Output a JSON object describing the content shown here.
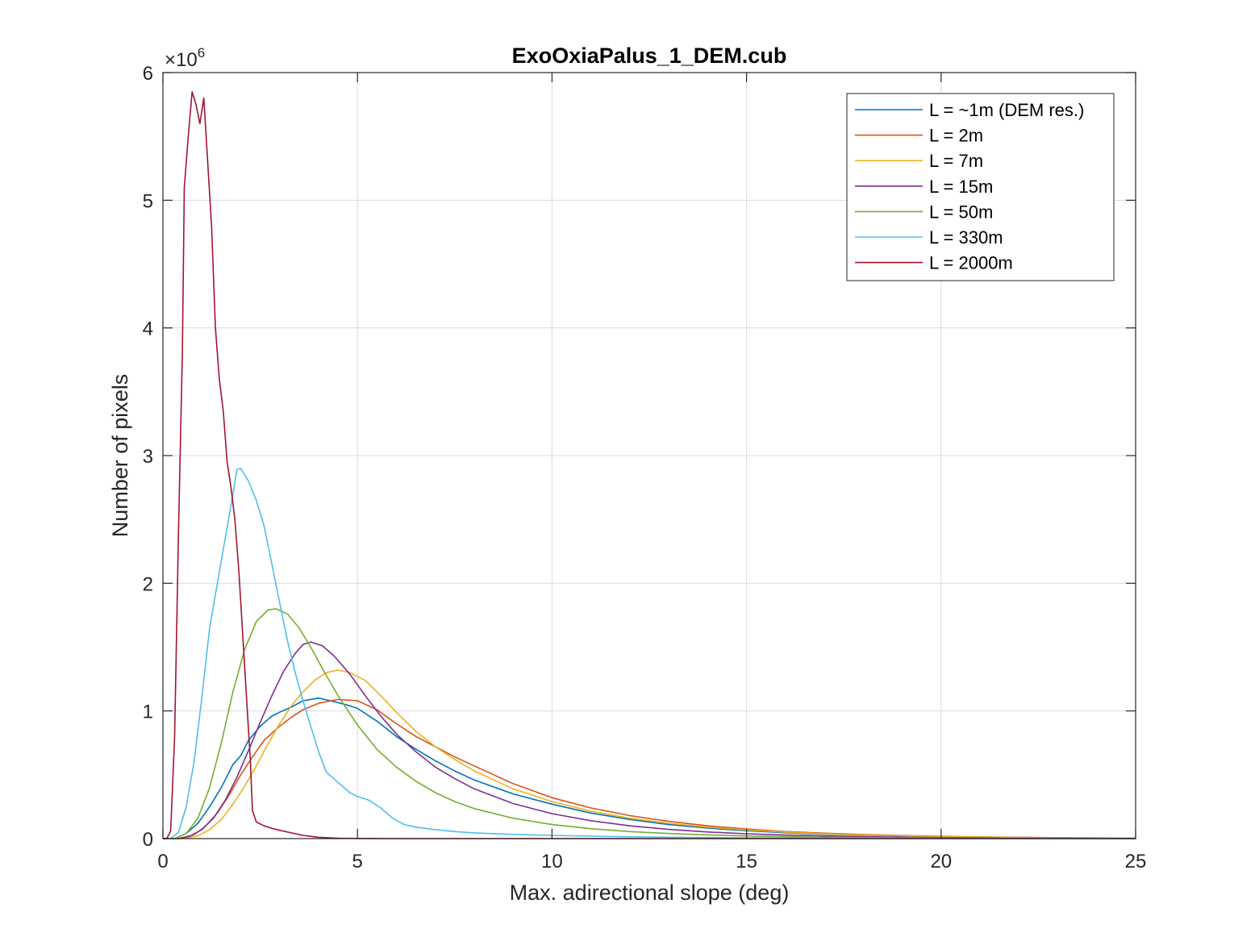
{
  "chart_data": {
    "type": "line",
    "title": "ExoOxiaPalus_1_DEM.cub",
    "xlabel": "Max. adirectional slope (deg)",
    "ylabel": "Number of pixels",
    "xlim": [
      0,
      25
    ],
    "ylim": [
      0,
      6000000
    ],
    "xticks": [
      0,
      5,
      10,
      15,
      20,
      25
    ],
    "xtick_labels": [
      "0",
      "5",
      "10",
      "15",
      "20",
      "25"
    ],
    "yticks": [
      0,
      1000000,
      2000000,
      3000000,
      4000000,
      5000000,
      6000000
    ],
    "ytick_labels": [
      "0",
      "1",
      "2",
      "3",
      "4",
      "5",
      "6"
    ],
    "y_exponent": {
      "base": "×10",
      "power": "6"
    },
    "grid": true,
    "legend_position": "top-right",
    "series": [
      {
        "name": "L = ~1m (DEM res.)",
        "color": "#0072BD",
        "points": [
          [
            0,
            0
          ],
          [
            0.3,
            0
          ],
          [
            0.6,
            40000
          ],
          [
            0.9,
            120000
          ],
          [
            1.2,
            250000
          ],
          [
            1.5,
            400000
          ],
          [
            1.8,
            580000
          ],
          [
            2.0,
            650000
          ],
          [
            2.2,
            770000
          ],
          [
            2.5,
            880000
          ],
          [
            2.8,
            960000
          ],
          [
            3.0,
            990000
          ],
          [
            3.3,
            1030000
          ],
          [
            3.6,
            1080000
          ],
          [
            4.0,
            1100000
          ],
          [
            4.3,
            1080000
          ],
          [
            4.7,
            1050000
          ],
          [
            5.0,
            1020000
          ],
          [
            5.5,
            920000
          ],
          [
            6.0,
            800000
          ],
          [
            6.5,
            700000
          ],
          [
            7.0,
            610000
          ],
          [
            7.5,
            530000
          ],
          [
            8.0,
            460000
          ],
          [
            9.0,
            350000
          ],
          [
            10.0,
            270000
          ],
          [
            11.0,
            200000
          ],
          [
            12.0,
            150000
          ],
          [
            13.0,
            110000
          ],
          [
            14.0,
            82000
          ],
          [
            15.0,
            62000
          ],
          [
            16.0,
            46000
          ],
          [
            17.0,
            35000
          ],
          [
            18.0,
            27000
          ],
          [
            19.0,
            20000
          ],
          [
            20.0,
            15000
          ],
          [
            21.0,
            11000
          ],
          [
            22.0,
            8000
          ],
          [
            23.0,
            6000
          ],
          [
            24.0,
            4000
          ],
          [
            25.0,
            3000
          ]
        ]
      },
      {
        "name": "L = 2m",
        "color": "#D95319",
        "points": [
          [
            0,
            0
          ],
          [
            0.4,
            0
          ],
          [
            0.8,
            30000
          ],
          [
            1.1,
            100000
          ],
          [
            1.4,
            200000
          ],
          [
            1.7,
            340000
          ],
          [
            2.0,
            500000
          ],
          [
            2.3,
            640000
          ],
          [
            2.6,
            770000
          ],
          [
            3.0,
            880000
          ],
          [
            3.3,
            950000
          ],
          [
            3.6,
            1010000
          ],
          [
            4.0,
            1060000
          ],
          [
            4.5,
            1090000
          ],
          [
            5.0,
            1080000
          ],
          [
            5.5,
            1010000
          ],
          [
            6.0,
            900000
          ],
          [
            6.5,
            800000
          ],
          [
            7.0,
            720000
          ],
          [
            7.5,
            640000
          ],
          [
            8.0,
            570000
          ],
          [
            8.5,
            500000
          ],
          [
            9.0,
            430000
          ],
          [
            10.0,
            320000
          ],
          [
            11.0,
            240000
          ],
          [
            12.0,
            180000
          ],
          [
            13.0,
            135000
          ],
          [
            14.0,
            100000
          ],
          [
            15.0,
            75000
          ],
          [
            16.0,
            55000
          ],
          [
            17.0,
            42000
          ],
          [
            18.0,
            32000
          ],
          [
            19.0,
            24000
          ],
          [
            20.0,
            18000
          ],
          [
            21.0,
            13000
          ],
          [
            22.0,
            10000
          ],
          [
            23.0,
            7000
          ],
          [
            24.0,
            5000
          ],
          [
            25.0,
            4000
          ]
        ]
      },
      {
        "name": "L = 7m",
        "color": "#EDB120",
        "points": [
          [
            0,
            0
          ],
          [
            0.5,
            0
          ],
          [
            0.9,
            20000
          ],
          [
            1.2,
            70000
          ],
          [
            1.5,
            150000
          ],
          [
            1.8,
            270000
          ],
          [
            2.1,
            410000
          ],
          [
            2.4,
            570000
          ],
          [
            2.7,
            740000
          ],
          [
            3.0,
            900000
          ],
          [
            3.3,
            1040000
          ],
          [
            3.6,
            1150000
          ],
          [
            3.9,
            1240000
          ],
          [
            4.2,
            1300000
          ],
          [
            4.5,
            1320000
          ],
          [
            4.8,
            1300000
          ],
          [
            5.2,
            1240000
          ],
          [
            5.6,
            1120000
          ],
          [
            6.0,
            990000
          ],
          [
            6.5,
            840000
          ],
          [
            7.0,
            720000
          ],
          [
            7.5,
            620000
          ],
          [
            8.0,
            530000
          ],
          [
            8.5,
            460000
          ],
          [
            9.0,
            390000
          ],
          [
            10.0,
            290000
          ],
          [
            11.0,
            215000
          ],
          [
            12.0,
            160000
          ],
          [
            13.0,
            120000
          ],
          [
            14.0,
            90000
          ],
          [
            15.0,
            68000
          ],
          [
            16.0,
            51000
          ],
          [
            17.0,
            38000
          ],
          [
            18.0,
            29000
          ],
          [
            19.0,
            22000
          ],
          [
            20.0,
            16000
          ],
          [
            21.0,
            12000
          ],
          [
            22.0,
            9000
          ],
          [
            23.0,
            7000
          ],
          [
            24.0,
            5000
          ],
          [
            25.0,
            3000
          ]
        ]
      },
      {
        "name": "L = 15m",
        "color": "#7E2F8E",
        "points": [
          [
            0,
            0
          ],
          [
            0.4,
            0
          ],
          [
            0.7,
            20000
          ],
          [
            1.0,
            70000
          ],
          [
            1.3,
            160000
          ],
          [
            1.6,
            300000
          ],
          [
            1.9,
            480000
          ],
          [
            2.2,
            690000
          ],
          [
            2.5,
            910000
          ],
          [
            2.8,
            1120000
          ],
          [
            3.1,
            1310000
          ],
          [
            3.4,
            1450000
          ],
          [
            3.6,
            1520000
          ],
          [
            3.8,
            1540000
          ],
          [
            4.1,
            1510000
          ],
          [
            4.4,
            1430000
          ],
          [
            4.8,
            1290000
          ],
          [
            5.2,
            1120000
          ],
          [
            5.6,
            960000
          ],
          [
            6.0,
            820000
          ],
          [
            6.5,
            680000
          ],
          [
            7.0,
            560000
          ],
          [
            7.5,
            470000
          ],
          [
            8.0,
            390000
          ],
          [
            9.0,
            275000
          ],
          [
            10.0,
            195000
          ],
          [
            11.0,
            140000
          ],
          [
            12.0,
            100000
          ],
          [
            13.0,
            72000
          ],
          [
            14.0,
            52000
          ],
          [
            15.0,
            38000
          ],
          [
            16.0,
            28000
          ],
          [
            17.0,
            21000
          ],
          [
            18.0,
            15000
          ],
          [
            19.0,
            11000
          ],
          [
            20.0,
            8000
          ],
          [
            21.0,
            6000
          ],
          [
            22.0,
            4000
          ],
          [
            23.0,
            3000
          ],
          [
            24.0,
            2000
          ],
          [
            25.0,
            1500
          ]
        ]
      },
      {
        "name": "L = 50m",
        "color": "#77AC30",
        "points": [
          [
            0,
            0
          ],
          [
            0.3,
            0
          ],
          [
            0.6,
            40000
          ],
          [
            0.9,
            160000
          ],
          [
            1.2,
            400000
          ],
          [
            1.5,
            750000
          ],
          [
            1.8,
            1150000
          ],
          [
            2.1,
            1480000
          ],
          [
            2.4,
            1700000
          ],
          [
            2.7,
            1790000
          ],
          [
            2.9,
            1800000
          ],
          [
            3.2,
            1760000
          ],
          [
            3.5,
            1650000
          ],
          [
            3.8,
            1500000
          ],
          [
            4.1,
            1330000
          ],
          [
            4.5,
            1120000
          ],
          [
            5.0,
            890000
          ],
          [
            5.5,
            700000
          ],
          [
            6.0,
            560000
          ],
          [
            6.5,
            450000
          ],
          [
            7.0,
            360000
          ],
          [
            7.5,
            290000
          ],
          [
            8.0,
            235000
          ],
          [
            9.0,
            160000
          ],
          [
            10.0,
            110000
          ],
          [
            11.0,
            78000
          ],
          [
            12.0,
            55000
          ],
          [
            13.0,
            40000
          ],
          [
            14.0,
            29000
          ],
          [
            15.0,
            21000
          ],
          [
            16.0,
            15000
          ],
          [
            17.0,
            11000
          ],
          [
            18.0,
            8000
          ],
          [
            19.0,
            6000
          ],
          [
            20.0,
            4500
          ],
          [
            21.0,
            3300
          ],
          [
            22.0,
            2500
          ],
          [
            23.0,
            1800
          ],
          [
            24.0,
            1300
          ],
          [
            25.0,
            1000
          ]
        ]
      },
      {
        "name": "L = 330m",
        "color": "#4DBEEE",
        "points": [
          [
            0,
            0
          ],
          [
            0.2,
            0
          ],
          [
            0.4,
            50000
          ],
          [
            0.6,
            250000
          ],
          [
            0.8,
            600000
          ],
          [
            1.0,
            1100000
          ],
          [
            1.2,
            1650000
          ],
          [
            1.4,
            2000000
          ],
          [
            1.6,
            2350000
          ],
          [
            1.8,
            2700000
          ],
          [
            1.9,
            2890000
          ],
          [
            2.0,
            2900000
          ],
          [
            2.2,
            2800000
          ],
          [
            2.4,
            2650000
          ],
          [
            2.6,
            2450000
          ],
          [
            2.8,
            2150000
          ],
          [
            3.0,
            1850000
          ],
          [
            3.2,
            1550000
          ],
          [
            3.4,
            1300000
          ],
          [
            3.6,
            1080000
          ],
          [
            3.8,
            880000
          ],
          [
            4.0,
            680000
          ],
          [
            4.2,
            520000
          ],
          [
            4.5,
            440000
          ],
          [
            4.8,
            360000
          ],
          [
            5.0,
            330000
          ],
          [
            5.3,
            300000
          ],
          [
            5.6,
            240000
          ],
          [
            5.9,
            160000
          ],
          [
            6.2,
            110000
          ],
          [
            6.5,
            90000
          ],
          [
            7.0,
            70000
          ],
          [
            7.5,
            55000
          ],
          [
            8.0,
            45000
          ],
          [
            9.0,
            33000
          ],
          [
            10.0,
            25000
          ],
          [
            11.0,
            19000
          ],
          [
            12.0,
            14000
          ],
          [
            13.0,
            11000
          ],
          [
            14.0,
            8000
          ],
          [
            15.0,
            6000
          ],
          [
            17.0,
            3500
          ],
          [
            19.0,
            2000
          ],
          [
            21.0,
            1200
          ],
          [
            23.0,
            700
          ],
          [
            25.0,
            400
          ]
        ]
      },
      {
        "name": "L = 2000m",
        "color": "#A2142F",
        "points": [
          [
            0,
            0
          ],
          [
            0.1,
            0
          ],
          [
            0.2,
            60000
          ],
          [
            0.3,
            800000
          ],
          [
            0.4,
            2400000
          ],
          [
            0.5,
            3800000
          ],
          [
            0.55,
            5100000
          ],
          [
            0.65,
            5500000
          ],
          [
            0.75,
            5850000
          ],
          [
            0.85,
            5750000
          ],
          [
            0.95,
            5600000
          ],
          [
            1.05,
            5800000
          ],
          [
            1.15,
            5300000
          ],
          [
            1.25,
            4800000
          ],
          [
            1.35,
            4000000
          ],
          [
            1.45,
            3600000
          ],
          [
            1.55,
            3350000
          ],
          [
            1.65,
            2950000
          ],
          [
            1.75,
            2750000
          ],
          [
            1.85,
            2500000
          ],
          [
            1.95,
            2100000
          ],
          [
            2.05,
            1600000
          ],
          [
            2.15,
            1100000
          ],
          [
            2.25,
            600000
          ],
          [
            2.3,
            220000
          ],
          [
            2.4,
            130000
          ],
          [
            2.6,
            100000
          ],
          [
            2.8,
            80000
          ],
          [
            3.0,
            65000
          ],
          [
            3.3,
            45000
          ],
          [
            3.6,
            25000
          ],
          [
            4.0,
            10000
          ],
          [
            4.5,
            3000
          ],
          [
            5.0,
            1000
          ],
          [
            6.0,
            0
          ],
          [
            25.0,
            0
          ]
        ]
      }
    ]
  }
}
